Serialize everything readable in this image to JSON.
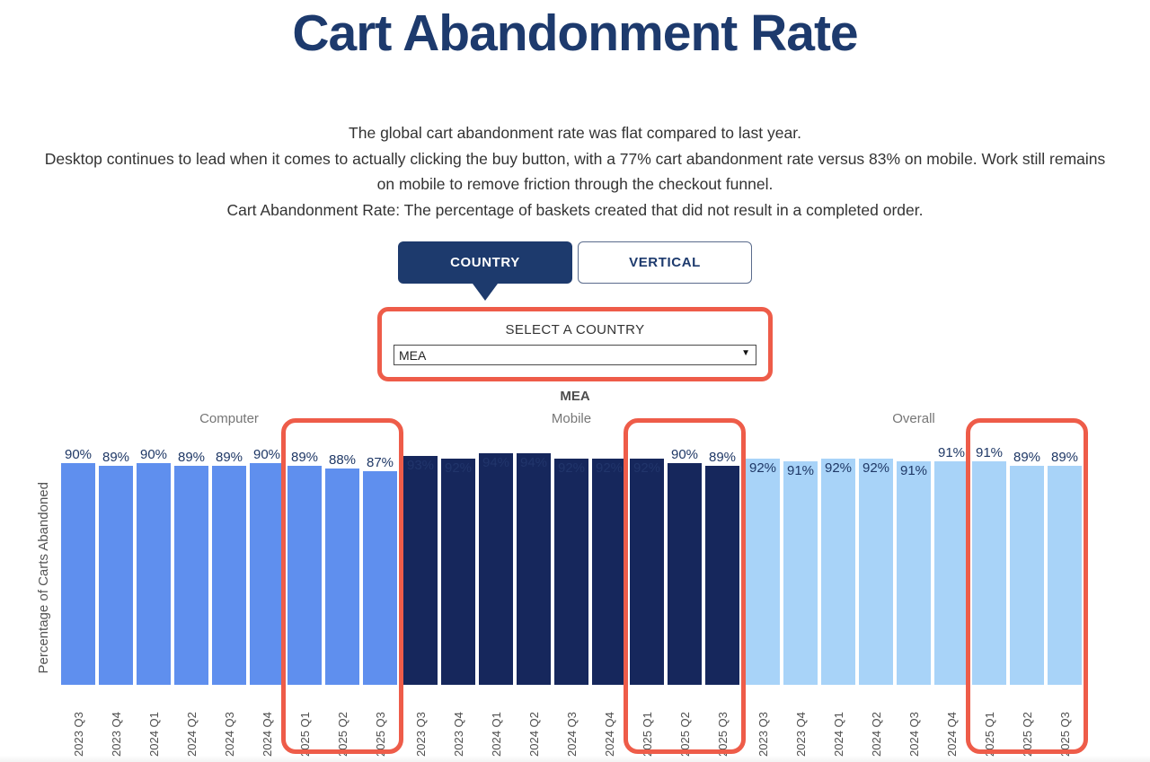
{
  "title": "Cart Abandonment Rate",
  "description": [
    "The global cart abandonment rate was flat compared to last year.",
    "Desktop continues to lead when it comes to actually clicking the buy button, with a 77% cart abandonment rate versus 83% on mobile. Work still remains on mobile to remove friction through the checkout funnel.",
    "Cart Abandonment Rate: The percentage of baskets created that did not result in a completed order."
  ],
  "tabs": [
    {
      "label": "COUNTRY",
      "active": true
    },
    {
      "label": "VERTICAL",
      "active": false
    }
  ],
  "country_selector": {
    "label": "SELECT A COUNTRY",
    "selected": "MEA"
  },
  "chart_subtitle": "MEA",
  "icons": {
    "dropdown_arrow": "▼"
  },
  "colors": {
    "navy": "#1d3a6d",
    "value_label": "#1f3866",
    "highlight": "#ee5c49",
    "computer_bar": "#5f8fee",
    "mobile_bar": "#16275c",
    "overall_bar": "#a8d3f8"
  },
  "chart_data": {
    "type": "bar",
    "title": "MEA",
    "ylabel": "Percentage of Carts Abandoned",
    "xlabel": "",
    "ylim": [
      0,
      100
    ],
    "grid": false,
    "legend_position": "none",
    "categories": [
      "2023 Q3",
      "2023 Q4",
      "2024 Q1",
      "2024 Q2",
      "2024 Q3",
      "2024 Q4",
      "2025 Q1",
      "2025 Q2",
      "2025 Q3"
    ],
    "groups": [
      {
        "name": "Computer",
        "color": "#5f8fee",
        "inside_label_color": "#1f3866",
        "values": [
          90,
          89,
          90,
          89,
          89,
          90,
          89,
          88,
          87
        ],
        "label_positions": [
          "above",
          "above",
          "above",
          "above",
          "above",
          "above",
          "above",
          "above",
          "above"
        ]
      },
      {
        "name": "Mobile",
        "color": "#16275c",
        "inside_label_color": "#21356b",
        "values": [
          93,
          92,
          94,
          94,
          92,
          92,
          92,
          90,
          89
        ],
        "label_positions": [
          "inside",
          "inside",
          "inside",
          "inside",
          "inside",
          "inside",
          "inside",
          "above",
          "above"
        ]
      },
      {
        "name": "Overall",
        "color": "#a8d3f8",
        "inside_label_color": "#1f3866",
        "values": [
          92,
          91,
          92,
          92,
          91,
          91,
          91,
          89,
          89
        ],
        "label_positions": [
          "inside",
          "inside",
          "inside",
          "inside",
          "inside",
          "above",
          "above",
          "above",
          "above"
        ]
      }
    ],
    "highlight": {
      "quarters": [
        "2025 Q1",
        "2025 Q2",
        "2025 Q3"
      ],
      "color": "#ee5c49"
    }
  }
}
